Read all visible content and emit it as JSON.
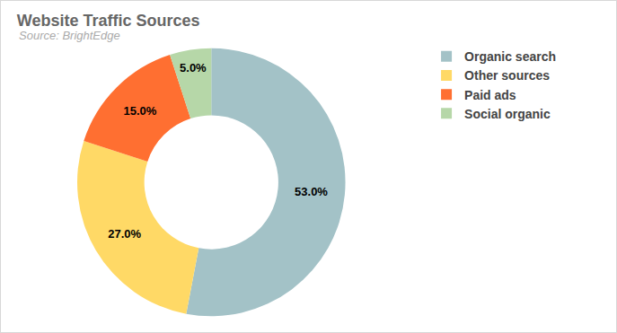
{
  "chart_data": {
    "type": "pie",
    "title": "Website Traffic Sources",
    "subtitle": "Source: BrightEdge",
    "categories": [
      "Organic search",
      "Other sources",
      "Paid ads",
      "Social organic"
    ],
    "values": [
      53,
      27,
      15,
      5
    ],
    "value_labels": [
      "53.0%",
      "27.0%",
      "15.0%",
      "5.0%"
    ],
    "colors": [
      "#a3c2c7",
      "#ffd966",
      "#ff6f31",
      "#b6d7a8"
    ],
    "data_labels": true,
    "legend": "right"
  }
}
